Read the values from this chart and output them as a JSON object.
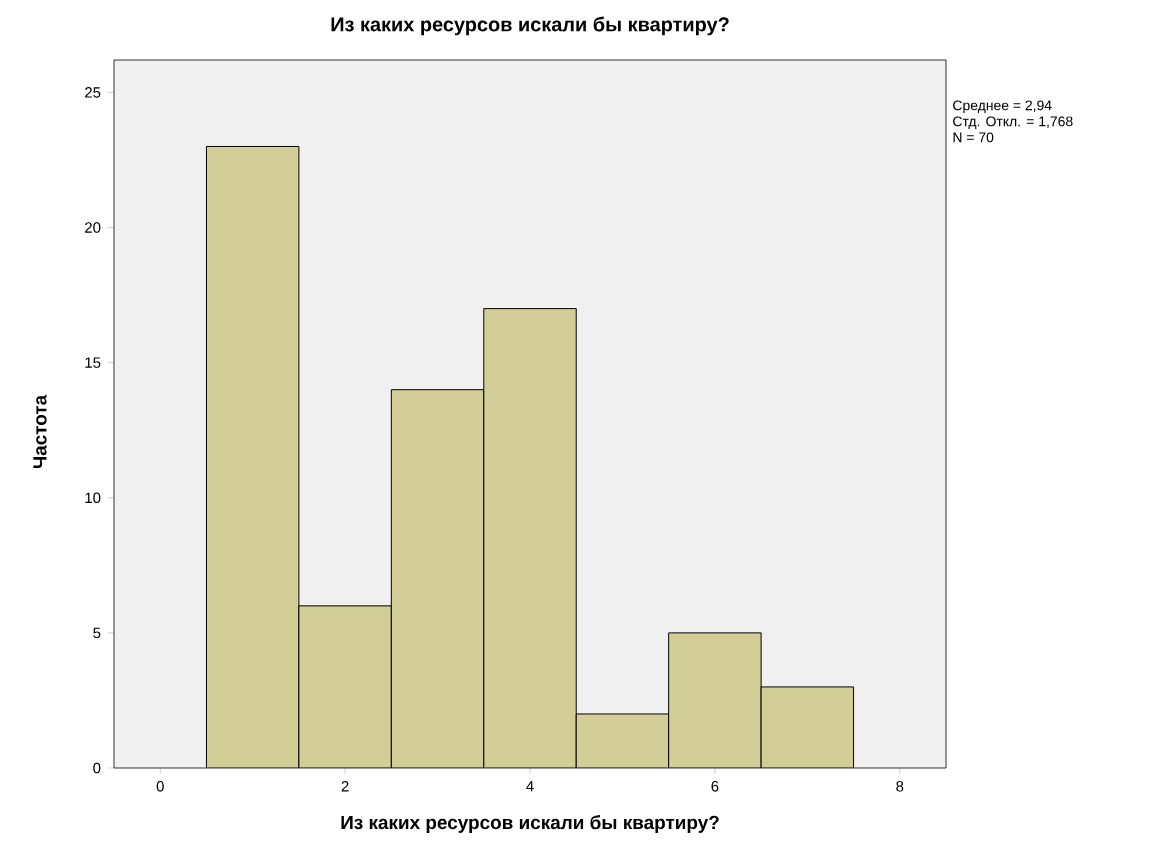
{
  "chart_data": {
    "type": "histogram",
    "title": "Из каких ресурсов искали бы квартиру?",
    "xlabel": "Из каких ресурсов искали бы квартиру?",
    "ylabel": "Частота",
    "bins": [
      0.5,
      1.5,
      2.5,
      3.5,
      4.5,
      5.5,
      6.5,
      7.5
    ],
    "values": [
      23,
      6,
      14,
      17,
      2,
      5,
      3
    ],
    "color": "#d3ce98",
    "xlim": [
      -0.5,
      8.5
    ],
    "ylim": [
      0,
      26.2
    ],
    "xticks": [
      0,
      2,
      4,
      6,
      8
    ],
    "yticks": [
      0,
      5,
      10,
      15,
      20,
      25
    ],
    "grid": false,
    "annotations": [
      "Среднее = 2,94",
      "Стд. Откл. = 1,768",
      "N = 70"
    ]
  }
}
